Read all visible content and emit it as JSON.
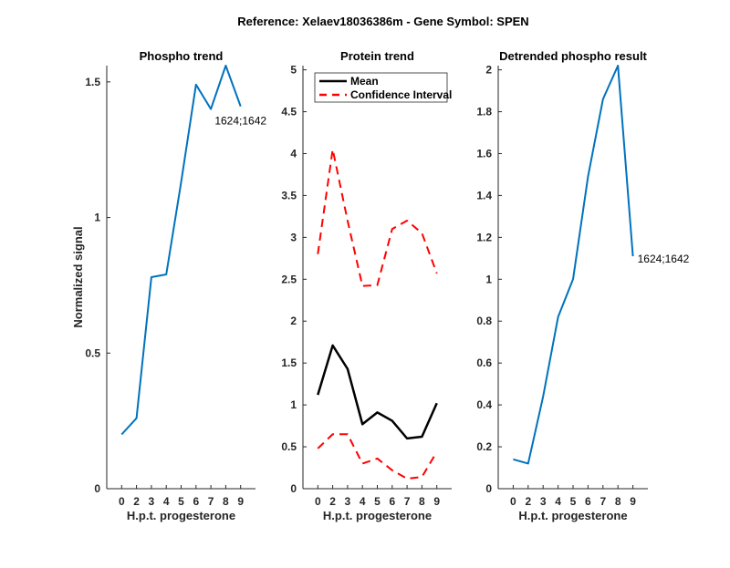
{
  "suptitle": "Reference:  Xelaev18036386m - Gene Symbol:  SPEN",
  "chart_data": [
    {
      "type": "line",
      "title": "Phospho trend",
      "xlabel": "H.p.t. progesterone",
      "ylabel": "Normalized signal",
      "categories": [
        "0",
        "2",
        "3",
        "4",
        "5",
        "6",
        "7",
        "8",
        "9"
      ],
      "ylim": [
        0,
        1.56
      ],
      "yticks": [
        0,
        0.5,
        1,
        1.5
      ],
      "ytick_labels": [
        "0",
        "0.5",
        "1",
        "1.5"
      ],
      "series": [
        {
          "name": "1624;1642",
          "color": "#0072BD",
          "style": "solid",
          "values": [
            0.2,
            0.26,
            0.78,
            0.79,
            1.13,
            1.49,
            1.4,
            1.56,
            1.41
          ]
        }
      ],
      "annotation": "1624;1642"
    },
    {
      "type": "line",
      "title": "Protein trend",
      "xlabel": "H.p.t. progesterone",
      "ylabel": "",
      "categories": [
        "0",
        "2",
        "3",
        "4",
        "5",
        "6",
        "7",
        "8",
        "9"
      ],
      "ylim": [
        0,
        5.05
      ],
      "yticks": [
        0,
        0.5,
        1,
        1.5,
        2,
        2.5,
        3,
        3.5,
        4,
        4.5,
        5
      ],
      "ytick_labels": [
        "0",
        "0.5",
        "1",
        "1.5",
        "2",
        "2.5",
        "3",
        "3.5",
        "4",
        "4.5",
        "5"
      ],
      "legend": {
        "placement": "top-left",
        "entries": [
          "Mean",
          "Confidence Interval"
        ]
      },
      "series": [
        {
          "name": "Mean",
          "color": "#000000",
          "style": "solid",
          "values": [
            1.12,
            1.71,
            1.43,
            0.77,
            0.91,
            0.81,
            0.6,
            0.62,
            1.02
          ]
        },
        {
          "name": "Confidence Interval",
          "color": "#FF0000",
          "style": "dashed",
          "values": [
            2.8,
            4.05,
            3.2,
            2.42,
            2.43,
            3.1,
            3.2,
            3.05,
            2.57
          ]
        },
        {
          "name": "Confidence Interval (lower)",
          "color": "#FF0000",
          "style": "dashed",
          "values": [
            0.48,
            0.65,
            0.65,
            0.3,
            0.36,
            0.22,
            0.12,
            0.14,
            0.44
          ]
        }
      ]
    },
    {
      "type": "line",
      "title": "Detrended phospho result",
      "xlabel": "H.p.t. progesterone",
      "ylabel": "",
      "categories": [
        "0",
        "2",
        "3",
        "4",
        "5",
        "6",
        "7",
        "8",
        "9"
      ],
      "ylim": [
        0,
        2.02
      ],
      "yticks": [
        0,
        0.2,
        0.4,
        0.6,
        0.8,
        1,
        1.2,
        1.4,
        1.6,
        1.8,
        2
      ],
      "ytick_labels": [
        "0",
        "0.2",
        "0.4",
        "0.6",
        "0.8",
        "1",
        "1.2",
        "1.4",
        "1.6",
        "1.8",
        "2"
      ],
      "series": [
        {
          "name": "1624;1642",
          "color": "#0072BD",
          "style": "solid",
          "values": [
            0.14,
            0.12,
            0.44,
            0.82,
            1.0,
            1.49,
            1.86,
            2.02,
            1.11
          ]
        }
      ],
      "annotation": "1624;1642"
    }
  ]
}
